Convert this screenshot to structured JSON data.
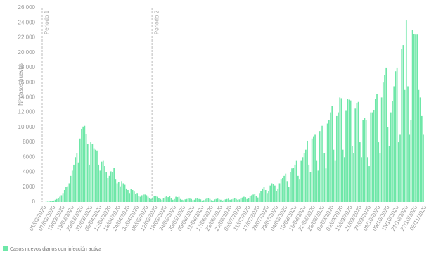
{
  "chart_data": {
    "type": "bar",
    "y_label": "Nº casos nuevos",
    "annotations": [
      "Periodo 1",
      "Periodo 2"
    ],
    "ylim": [
      0,
      26000
    ],
    "yticks": [
      0,
      2000,
      4000,
      6000,
      8000,
      {
        "value": 10000,
        "label": "10,000"
      },
      {
        "value": 12000,
        "label": "12,000"
      },
      {
        "value": 14000,
        "label": "14,000"
      },
      {
        "value": 16000,
        "label": "16,000"
      },
      {
        "value": 18000,
        "label": "18,000"
      },
      {
        "value": 20000,
        "label": "20,000"
      },
      {
        "value": 22000,
        "label": "22,000"
      },
      {
        "value": 24000,
        "label": "24,000"
      },
      {
        "value": 26000,
        "label": "26,000"
      }
    ],
    "grid": false,
    "categories": [
      "01/03/2020",
      null,
      null,
      null,
      null,
      null,
      "07/03/2020",
      null,
      null,
      null,
      null,
      null,
      "13/03/2020",
      null,
      null,
      null,
      null,
      null,
      "19/03/2020",
      null,
      null,
      null,
      null,
      null,
      "25/03/2020",
      null,
      null,
      null,
      null,
      null,
      "31/03/2020",
      null,
      null,
      null,
      null,
      null,
      "06/04/2020",
      null,
      null,
      null,
      null,
      null,
      "12/04/2020",
      null,
      null,
      null,
      null,
      null,
      "18/04/2020",
      null,
      null,
      null,
      null,
      null,
      "24/04/2020",
      null,
      null,
      null,
      null,
      null,
      "30/04/2020",
      null,
      null,
      null,
      null,
      null,
      "06/05/2020",
      null,
      null,
      null,
      null,
      null,
      "12/05/2020",
      null,
      null,
      null,
      null,
      null,
      "18/05/2020",
      null,
      null,
      null,
      null,
      null,
      "24/05/2020",
      null,
      null,
      null,
      null,
      null,
      "30/05/2020",
      null,
      null,
      null,
      null,
      null,
      "05/06/2020",
      null,
      null,
      null,
      null,
      null,
      "11/06/2020",
      null,
      null,
      null,
      null,
      null,
      "17/06/2020",
      null,
      null,
      null,
      null,
      null,
      "23/06/2020",
      null,
      null,
      null,
      null,
      null,
      "29/06/2020",
      null,
      null,
      null,
      null,
      null,
      "05/07/2020",
      null,
      null,
      null,
      null,
      null,
      "11/07/2020",
      null,
      null,
      null,
      null,
      null,
      "17/07/2020",
      null,
      null,
      null,
      null,
      null,
      "23/07/2020",
      null,
      null,
      null,
      null,
      null,
      "29/07/2020",
      null,
      null,
      null,
      null,
      null,
      "04/08/2020",
      null,
      null,
      null,
      null,
      null,
      "10/08/2020",
      null,
      null,
      null,
      null,
      null,
      "16/08/2020",
      null,
      null,
      null,
      null,
      null,
      "22/08/2020",
      null,
      null,
      null,
      null,
      null,
      "28/08/2020",
      null,
      null,
      null,
      null,
      null,
      "03/09/2020",
      null,
      null,
      null,
      null,
      null,
      "09/09/2020",
      null,
      null,
      null,
      null,
      null,
      "15/09/2020",
      null,
      null,
      null,
      null,
      null,
      "21/09/2020",
      null,
      null,
      null,
      null,
      null,
      "27/09/2020",
      null,
      null,
      null,
      null,
      null,
      "03/10/2020",
      null,
      null,
      null,
      null,
      null,
      "09/10/2020",
      null,
      null,
      null,
      null,
      null,
      "15/10/2020",
      null,
      null,
      null,
      null,
      null,
      "21/10/2020",
      null,
      null,
      null,
      null,
      null,
      "27/10/2020",
      null,
      null,
      null,
      null,
      null,
      "02/11/2020"
    ],
    "series": [
      {
        "name": "Casos nuevos diarios con infección activa",
        "color": "#6ee7a8",
        "values": [
          0,
          0,
          20,
          50,
          80,
          100,
          150,
          200,
          300,
          400,
          500,
          700,
          900,
          1200,
          1600,
          2000,
          2100,
          2500,
          3500,
          4200,
          5000,
          6000,
          6500,
          5300,
          8500,
          9800,
          10100,
          10200,
          9100,
          7800,
          5000,
          8000,
          7800,
          7200,
          7000,
          6900,
          5000,
          4200,
          5400,
          5500,
          4800,
          4000,
          3200,
          3500,
          4100,
          4000,
          4600,
          3000,
          2500,
          2700,
          2100,
          2800,
          2500,
          2300,
          1800,
          1600,
          1200,
          1700,
          1600,
          1400,
          1100,
          1200,
          800,
          700,
          900,
          1000,
          1000,
          900,
          700,
          500,
          400,
          600,
          800,
          850,
          700,
          500,
          400,
          300,
          500,
          700,
          750,
          650,
          800,
          500,
          300,
          400,
          700,
          650,
          700,
          400,
          300,
          250,
          350,
          400,
          500,
          450,
          400,
          250,
          300,
          450,
          500,
          400,
          350,
          200,
          250,
          400,
          450,
          500,
          400,
          250,
          200,
          350,
          400,
          450,
          350,
          300,
          200,
          250,
          350,
          400,
          450,
          300,
          350,
          400,
          500,
          400,
          300,
          350,
          500,
          600,
          700,
          650,
          400,
          500,
          800,
          900,
          1000,
          1100,
          800,
          600,
          1200,
          1500,
          1800,
          2000,
          1600,
          1200,
          1500,
          2200,
          2500,
          2400,
          2200,
          1500,
          1800,
          2500,
          3000,
          3200,
          3500,
          3800,
          2800,
          2000,
          4000,
          4500,
          4600,
          5000,
          5500,
          3500,
          3000,
          5500,
          6000,
          6500,
          7000,
          8200,
          5000,
          4000,
          8500,
          8800,
          9000,
          5500,
          4200,
          9500,
          10200,
          10200,
          6500,
          4500,
          10500,
          11000,
          12000,
          12900,
          7000,
          5500,
          11500,
          12000,
          14000,
          13900,
          7000,
          6000,
          12200,
          13800,
          13700,
          13600,
          7500,
          6500,
          12500,
          13200,
          13400,
          8000,
          6000,
          11000,
          11300,
          11000,
          6000,
          4800,
          12000,
          12000,
          12300,
          13800,
          14500,
          8000,
          6500,
          14000,
          16000,
          17000,
          18000,
          10000,
          7500,
          12000,
          13500,
          15500,
          17500,
          18000,
          8000,
          9000,
          20500,
          21000,
          15000,
          24300,
          15500,
          9000,
          11000,
          23000,
          22500,
          22400,
          22400,
          15000,
          14000,
          11500,
          9000
        ]
      }
    ]
  }
}
